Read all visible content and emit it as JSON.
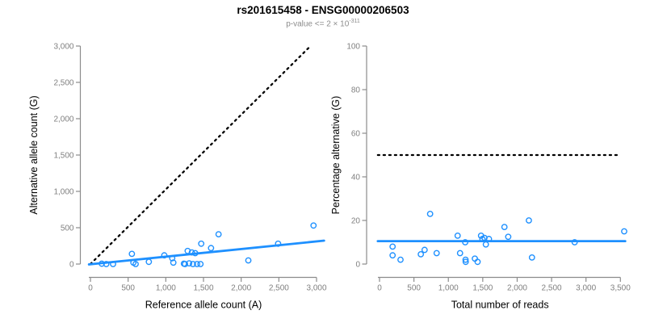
{
  "header": {
    "title": "rs201615458 - ENSG00000206503",
    "subtitle_prefix": "p-value <= 2 × 10",
    "subtitle_exponent": "-311"
  },
  "colors": {
    "accent_blue": "#1E90FF",
    "dotted_black": "#000000",
    "axis_line": "#8c8c8c",
    "tick_label": "#808080",
    "axis_title": "#000000",
    "title": "#000000",
    "subtitle": "#8c8c8c",
    "background": "#ffffff"
  },
  "chart_data": [
    {
      "type": "scatter",
      "panel": "left",
      "xlabel": "Reference allele count (A)",
      "ylabel": "Alternative allele count (G)",
      "xlim": [
        0,
        3000
      ],
      "ylim": [
        0,
        3000
      ],
      "xtick_values": [
        0,
        500,
        1000,
        1500,
        2000,
        2500,
        3000
      ],
      "xtick_labels": [
        "0",
        "500",
        "1,000",
        "1,500",
        "2,000",
        "2,500",
        "3,000"
      ],
      "ytick_values": [
        0,
        500,
        1000,
        1500,
        2000,
        2500,
        3000
      ],
      "ytick_labels": [
        "0",
        "500",
        "1,000",
        "1,500",
        "2,000",
        "2,500",
        "3,000"
      ],
      "grid": false,
      "legend": null,
      "marker": "open-circle",
      "points": [
        [
          150,
          5
        ],
        [
          210,
          0
        ],
        [
          300,
          0
        ],
        [
          550,
          140
        ],
        [
          570,
          20
        ],
        [
          600,
          0
        ],
        [
          775,
          30
        ],
        [
          980,
          120
        ],
        [
          1085,
          80
        ],
        [
          1100,
          20
        ],
        [
          1240,
          5
        ],
        [
          1255,
          0
        ],
        [
          1290,
          180
        ],
        [
          1310,
          10
        ],
        [
          1345,
          160
        ],
        [
          1360,
          0
        ],
        [
          1390,
          150
        ],
        [
          1415,
          0
        ],
        [
          1460,
          0
        ],
        [
          1470,
          280
        ],
        [
          1600,
          220
        ],
        [
          1700,
          410
        ],
        [
          2095,
          50
        ],
        [
          2490,
          280
        ],
        [
          2960,
          530
        ]
      ],
      "lines": [
        {
          "name": "identity-line",
          "description": "y = x reference",
          "style": "dotted",
          "color": "#000000",
          "x": [
            0,
            2920
          ],
          "y": [
            0,
            3000
          ]
        },
        {
          "name": "regression-line",
          "description": "fit, slope ~0.104",
          "style": "solid",
          "color": "#1E90FF",
          "x": [
            -20,
            3100
          ],
          "y": [
            -5,
            322
          ]
        }
      ]
    },
    {
      "type": "scatter",
      "panel": "right",
      "xlabel": "Total number of reads",
      "ylabel": "Percentage alternative (G)",
      "xlim": [
        0,
        3500
      ],
      "ylim": [
        0,
        100
      ],
      "xtick_values": [
        0,
        500,
        1000,
        1500,
        2000,
        2500,
        3000,
        3500
      ],
      "xtick_labels": [
        "0",
        "500",
        "1,000",
        "1,500",
        "2,000",
        "2,500",
        "3,000",
        "3,500"
      ],
      "ytick_values": [
        0,
        20,
        40,
        60,
        80,
        100
      ],
      "ytick_labels": [
        "0",
        "20",
        "40",
        "60",
        "80",
        "100"
      ],
      "grid": false,
      "legend": null,
      "marker": "open-circle",
      "points": [
        [
          190,
          8
        ],
        [
          190,
          4
        ],
        [
          305,
          2
        ],
        [
          600,
          4.5
        ],
        [
          655,
          6.5
        ],
        [
          735,
          23
        ],
        [
          830,
          5
        ],
        [
          1135,
          13
        ],
        [
          1170,
          5
        ],
        [
          1245,
          10
        ],
        [
          1250,
          2
        ],
        [
          1252,
          1
        ],
        [
          1385,
          2.5
        ],
        [
          1425,
          1
        ],
        [
          1475,
          13
        ],
        [
          1495,
          11.5
        ],
        [
          1525,
          12
        ],
        [
          1545,
          9
        ],
        [
          1590,
          11.5
        ],
        [
          1815,
          17
        ],
        [
          1870,
          12.5
        ],
        [
          2170,
          20
        ],
        [
          2215,
          3
        ],
        [
          2835,
          10
        ],
        [
          3555,
          15
        ]
      ],
      "lines": [
        {
          "name": "threshold-line",
          "description": "50% reference",
          "style": "dotted",
          "color": "#000000",
          "x": [
            -25,
            3490
          ],
          "y": [
            50,
            50
          ]
        },
        {
          "name": "mean-line",
          "description": "mean percentage ~10.5",
          "style": "solid",
          "color": "#1E90FF",
          "x": [
            -25,
            3570
          ],
          "y": [
            10.5,
            10.5
          ]
        }
      ]
    }
  ]
}
